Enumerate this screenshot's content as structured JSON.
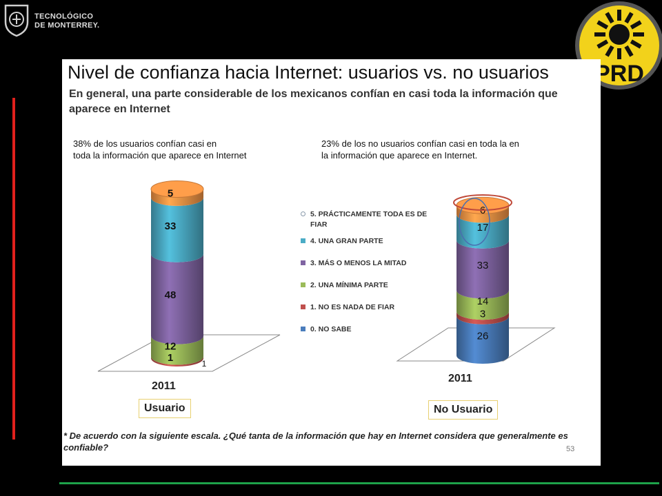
{
  "header": {
    "org_line1": "TECNOLÓGICO",
    "org_line2": "DE MONTERREY.",
    "party_logo_text": "PRD"
  },
  "slide": {
    "title": "Nivel de confianza hacia Internet: usuarios vs. no usuarios",
    "subtitle": "En general, una parte considerable de los mexicanos confían en  casi toda la información que aparece en Internet",
    "caption_left": "38% de los usuarios  confían casi en\ntoda la información que aparece en Internet",
    "caption_right": "23% de los  no usuarios  confían casi en toda la en\nla información que aparece en Internet.",
    "footnote": "* De acuerdo con la siguiente escala. ¿Qué tanta de la información que hay en Internet considera que generalmente es confiable?",
    "page_number": "53"
  },
  "colors": {
    "no_sabe": "#4a7dbc",
    "nada_de_fiar": "#c0504d",
    "minima_parte": "#9bbb59",
    "mas_o_menos_mitad": "#8064a2",
    "gran_parte": "#4bacc6",
    "practicamente_toda": "#f79646",
    "accent_red": "#e0201c",
    "accent_green": "#1ea24a",
    "party_yellow": "#f2d21b"
  },
  "chart_data": {
    "type": "bar",
    "stacked": true,
    "categories": [
      "Usuario",
      "No Usuario"
    ],
    "category_years": [
      "2011",
      "2011"
    ],
    "legend_position": "center",
    "series": [
      {
        "name": "0. NO SABE",
        "values": [
          0,
          26
        ],
        "color_key": "no_sabe"
      },
      {
        "name": "1. NO ES NADA DE FIAR",
        "values": [
          1,
          3
        ],
        "color_key": "nada_de_fiar"
      },
      {
        "name": "2. UNA MÍNIMA PARTE",
        "values": [
          12,
          14
        ],
        "color_key": "minima_parte"
      },
      {
        "name": "3. MÁS O MENOS LA MITAD",
        "values": [
          48,
          33
        ],
        "color_key": "mas_o_menos_mitad"
      },
      {
        "name": "4. UNA GRAN PARTE",
        "values": [
          33,
          17
        ],
        "color_key": "gran_parte"
      },
      {
        "name": "5. PRÁCTICAMENTE TODA ES DE FIAR",
        "values": [
          5,
          6
        ],
        "color_key": "practicamente_toda"
      }
    ],
    "extra_labels": {
      "usuario_side_label": "1"
    }
  }
}
